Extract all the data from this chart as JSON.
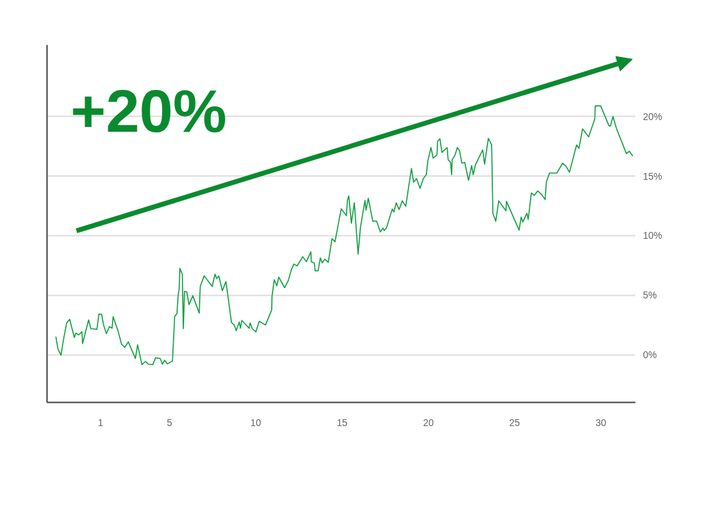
{
  "chart_data": {
    "type": "line",
    "annotations": [
      "+20%"
    ],
    "xlim": [
      -2.1,
      32
    ],
    "xticks": [
      1,
      5,
      10,
      15,
      20,
      25,
      30
    ],
    "ylim": [
      -4,
      26
    ],
    "yticks": [
      {
        "value": 0,
        "label": "0%"
      },
      {
        "value": 5,
        "label": "5%"
      },
      {
        "value": 10,
        "label": "10%"
      },
      {
        "value": 15,
        "label": "15%"
      },
      {
        "value": 20,
        "label": "20%"
      }
    ],
    "grid": "y",
    "series": [
      {
        "color": "#14a044",
        "x": [
          -1.59,
          -1.46,
          -1.29,
          -1.15,
          -0.96,
          -0.79,
          -0.52,
          -0.43,
          -0.26,
          -0.08,
          -0.04,
          0.31,
          0.44,
          0.79,
          0.91,
          1.07,
          1.17,
          1.34,
          1.51,
          1.67,
          1.73,
          2.0,
          2.22,
          2.41,
          2.61,
          3.02,
          3.15,
          3.4,
          3.61,
          3.77,
          4.03,
          4.19,
          4.46,
          4.59,
          4.71,
          4.88,
          5.17,
          5.3,
          5.43,
          5.5,
          5.56,
          5.6,
          5.74,
          5.8,
          5.87,
          6.0,
          6.13,
          6.35,
          6.72,
          6.78,
          7.01,
          7.47,
          7.64,
          7.73,
          7.86,
          8.06,
          8.27,
          8.59,
          8.75,
          8.86,
          9.04,
          9.11,
          9.19,
          9.61,
          9.67,
          9.8,
          10.0,
          10.2,
          10.56,
          10.92,
          10.94,
          11.07,
          11.22,
          11.33,
          11.67,
          11.88,
          12.06,
          12.2,
          12.4,
          12.72,
          12.93,
          13.19,
          13.22,
          13.39,
          13.44,
          13.61,
          13.74,
          13.85,
          14.0,
          14.2,
          14.42,
          14.59,
          14.95,
          15.25,
          15.31,
          15.39,
          15.54,
          15.71,
          15.93,
          16.06,
          16.33,
          16.39,
          16.52,
          16.78,
          17.0,
          17.22,
          17.37,
          17.44,
          17.57,
          17.91,
          18.0,
          18.14,
          18.31,
          18.49,
          18.69,
          19.02,
          19.15,
          19.32,
          19.52,
          19.71,
          19.88,
          19.97,
          20.15,
          20.28,
          20.5,
          20.54,
          20.67,
          20.79,
          21.09,
          21.15,
          21.29,
          21.35,
          21.38,
          21.55,
          21.68,
          21.81,
          21.94,
          22.11,
          22.33,
          22.51,
          22.6,
          22.73,
          23.15,
          23.26,
          23.48,
          23.67,
          23.74,
          23.91,
          24.08,
          24.5,
          24.53,
          25.26,
          25.38,
          25.48,
          25.71,
          25.79,
          25.97,
          26.14,
          26.34,
          26.57,
          26.77,
          26.84,
          27.02,
          27.45,
          27.78,
          27.98,
          28.18,
          28.59,
          28.73,
          28.94,
          29.29,
          29.65,
          29.67,
          29.99,
          30.47,
          30.56,
          30.7,
          30.91,
          31.48,
          31.65,
          31.85
        ],
        "values": [
          1.52,
          0.46,
          -0.04,
          1.25,
          2.67,
          2.98,
          1.46,
          1.81,
          1.67,
          1.92,
          0.94,
          2.92,
          2.19,
          2.14,
          3.42,
          3.38,
          2.54,
          1.77,
          2.36,
          2.23,
          3.19,
          2.08,
          0.88,
          0.63,
          1.08,
          -0.31,
          0.83,
          -0.83,
          -0.56,
          -0.79,
          -0.83,
          -0.25,
          -0.31,
          -0.79,
          -0.46,
          -0.77,
          -0.52,
          3.23,
          3.44,
          5.0,
          5.52,
          7.25,
          6.77,
          2.19,
          5.31,
          5.27,
          4.21,
          4.96,
          3.5,
          5.73,
          6.63,
          5.73,
          6.77,
          6.39,
          6.61,
          5.38,
          6.14,
          2.71,
          2.5,
          2.02,
          2.75,
          2.23,
          2.88,
          2.23,
          2.67,
          2.19,
          1.92,
          2.81,
          2.5,
          3.75,
          4.89,
          6.29,
          5.79,
          6.52,
          5.63,
          6.21,
          7.13,
          7.61,
          7.46,
          8.23,
          7.81,
          8.64,
          7.81,
          7.71,
          7.04,
          7.04,
          8.13,
          7.71,
          8.02,
          7.75,
          9.75,
          9.48,
          12.25,
          11.67,
          12.96,
          13.33,
          11.04,
          12.75,
          8.44,
          10.63,
          12.96,
          12.13,
          13.13,
          11.21,
          11.21,
          10.31,
          10.63,
          10.42,
          10.63,
          12.23,
          11.98,
          12.75,
          12.19,
          12.92,
          12.46,
          15.63,
          14.48,
          14.79,
          13.96,
          14.79,
          15.11,
          16.25,
          17.39,
          16.5,
          16.77,
          17.92,
          18.13,
          16.98,
          17.39,
          16.36,
          16.14,
          15.11,
          16.36,
          16.77,
          17.39,
          17.13,
          16.08,
          16.14,
          14.63,
          15.88,
          15.11,
          15.94,
          17.19,
          16.0,
          18.17,
          17.61,
          11.88,
          11.21,
          12.92,
          12.08,
          12.88,
          10.46,
          11.56,
          11.14,
          11.88,
          11.36,
          13.58,
          13.38,
          13.75,
          13.44,
          13.02,
          14.48,
          15.25,
          15.25,
          16.08,
          15.83,
          15.31,
          17.61,
          17.33,
          18.96,
          18.29,
          19.79,
          20.88,
          20.88,
          19.21,
          19.21,
          20.0,
          18.96,
          16.88,
          17.08,
          16.67
        ]
      }
    ]
  }
}
